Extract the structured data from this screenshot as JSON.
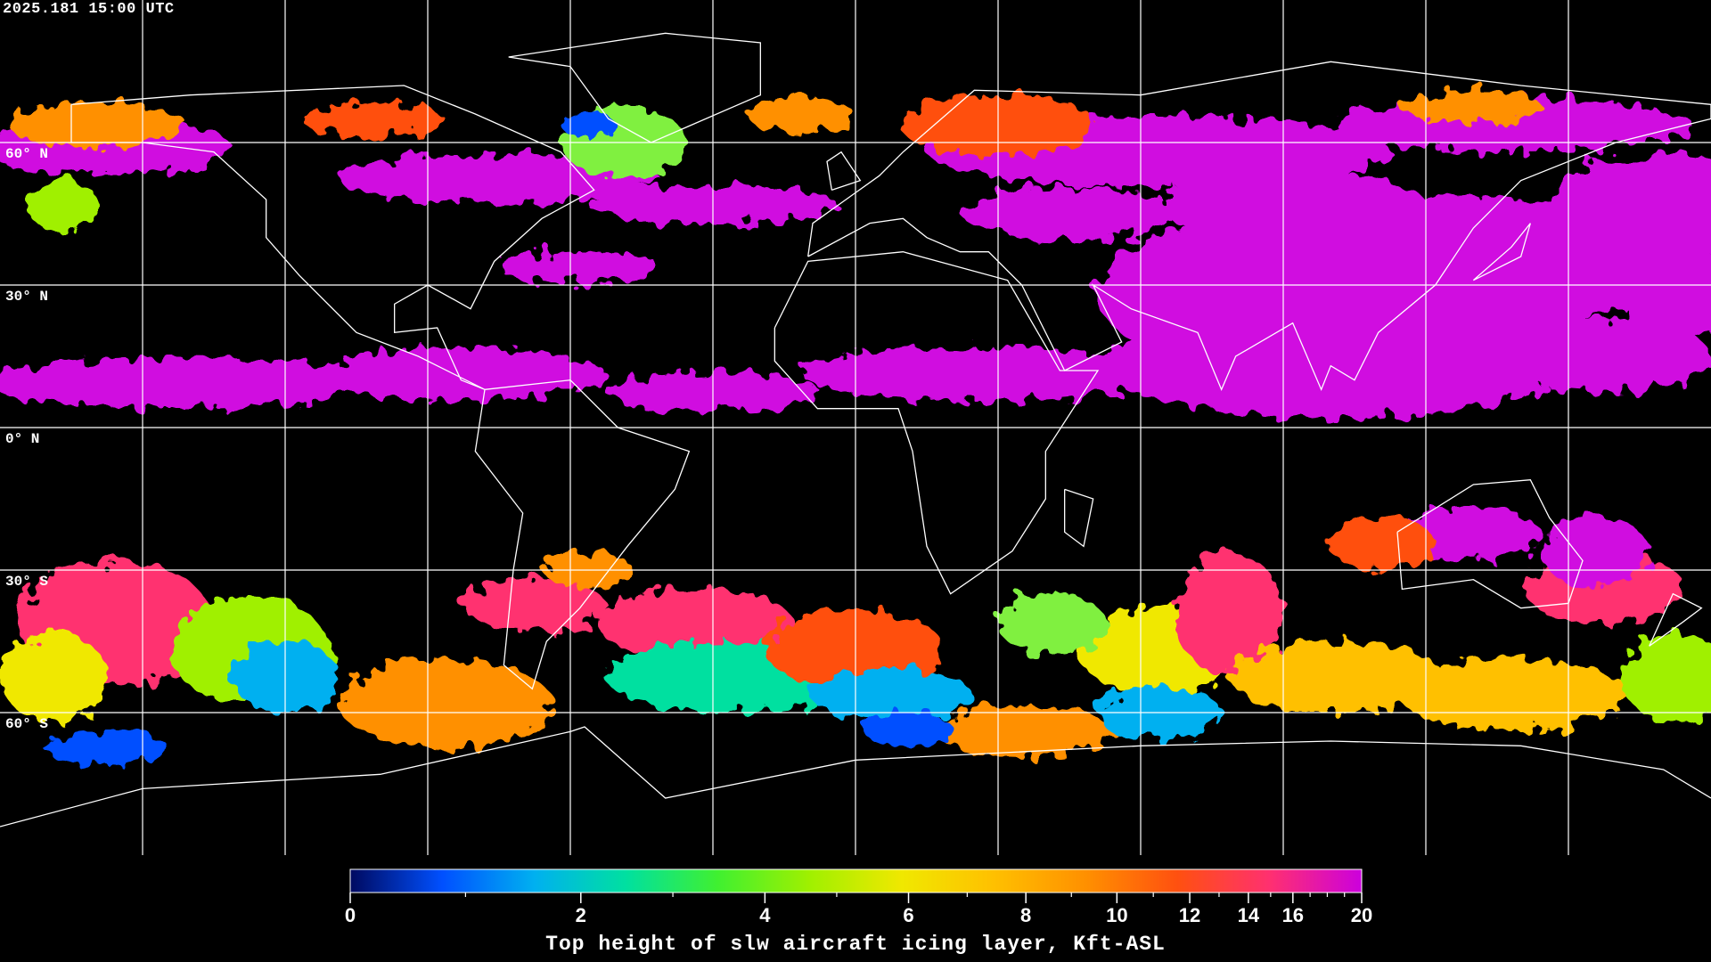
{
  "timestamp": "2025.181 15:00 UTC",
  "lat_labels": [
    "60° N",
    "30° N",
    "0° N",
    "30° S",
    "60° S"
  ],
  "map": {
    "projection": "equirectangular",
    "gridlines": true,
    "grid_spacing_deg": 30,
    "coastlines_color": "#ffffff",
    "background_color": "#000000",
    "dominant_cloud_color": "#d010e0"
  },
  "colorbar": {
    "title": "Top height of slw aircraft icing layer, Kft-ASL",
    "range": [
      0,
      20
    ],
    "major_ticks": [
      "0",
      "2",
      "4",
      "6",
      "8",
      "10",
      "12",
      "14",
      "16",
      "20"
    ],
    "minor_ticks": [
      1,
      3,
      5,
      7,
      9,
      11,
      13,
      15,
      17,
      18,
      19
    ],
    "colors": [
      "#000a60",
      "#0050ff",
      "#00b0f0",
      "#00e0a0",
      "#40f030",
      "#a0f000",
      "#f0e800",
      "#ffc000",
      "#ff9000",
      "#ff5010",
      "#ff3070",
      "#cc00dd"
    ]
  }
}
